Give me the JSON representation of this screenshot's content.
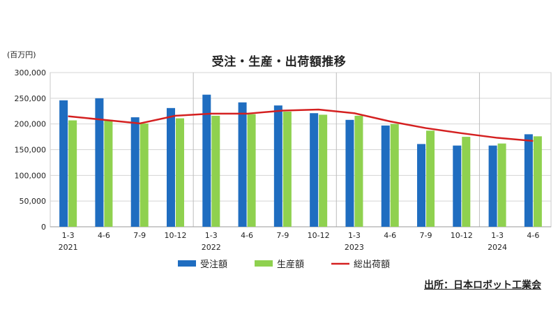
{
  "chart_data": {
    "type": "bar",
    "title": "受注・生産・出荷額推移",
    "unit_label": "(百万円)",
    "source": "出所：日本ロボット工業会",
    "categories": [
      "1-3",
      "4-6",
      "7-9",
      "10-12",
      "1-3",
      "4-6",
      "7-9",
      "10-12",
      "1-3",
      "4-6",
      "7-9",
      "10-12",
      "1-3",
      "4-6"
    ],
    "year_labels": [
      {
        "index": 0,
        "label": "2021"
      },
      {
        "index": 4,
        "label": "2022"
      },
      {
        "index": 8,
        "label": "2023"
      },
      {
        "index": 12,
        "label": "2024"
      }
    ],
    "ylim": [
      0,
      300000
    ],
    "yticks": [
      0,
      50000,
      100000,
      150000,
      200000,
      250000,
      300000
    ],
    "ytick_labels": [
      "0",
      "50,000",
      "100,000",
      "150,000",
      "200,000",
      "250,000",
      "300,000"
    ],
    "grid": true,
    "legend_position": "bottom",
    "series": [
      {
        "name": "受注額",
        "kind": "bar",
        "color": "#1F6DC0",
        "values": [
          246000,
          250000,
          213000,
          231000,
          257000,
          242000,
          236000,
          221000,
          208000,
          197000,
          161000,
          158000,
          158000,
          180000
        ]
      },
      {
        "name": "生産額",
        "kind": "bar",
        "color": "#8FD14F",
        "values": [
          207000,
          208000,
          201000,
          211000,
          216000,
          219000,
          224000,
          218000,
          216000,
          200000,
          187000,
          175000,
          162000,
          176000
        ]
      },
      {
        "name": "総出荷額",
        "kind": "line",
        "color": "#D42020",
        "values": [
          215000,
          208000,
          201000,
          216000,
          220000,
          220000,
          226000,
          228000,
          221000,
          205000,
          192000,
          182000,
          173000,
          167000
        ]
      }
    ]
  }
}
